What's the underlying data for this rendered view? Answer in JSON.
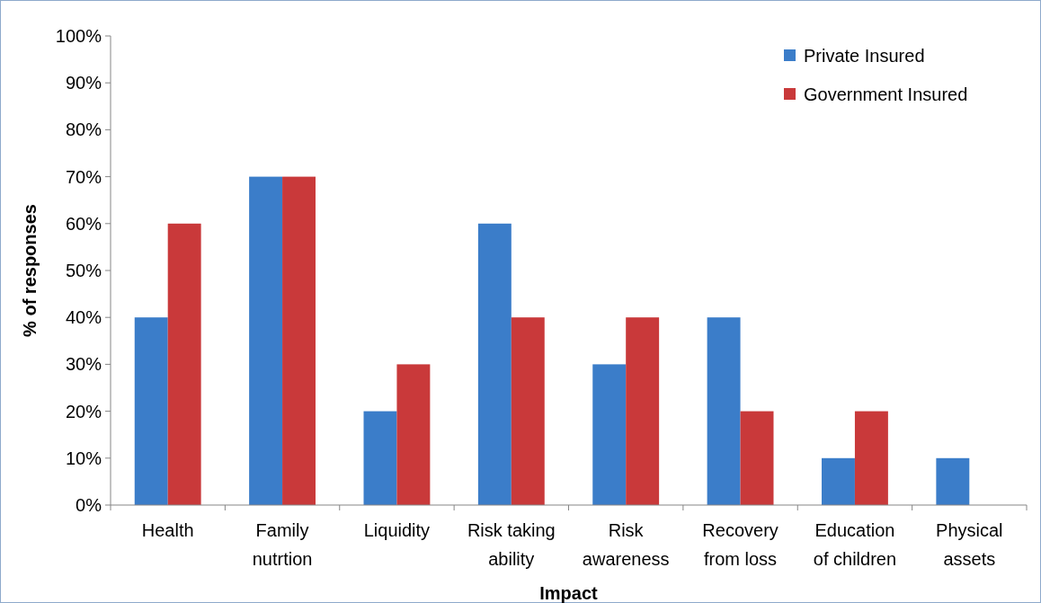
{
  "chart_data": {
    "type": "bar",
    "xlabel": "Impact",
    "ylabel": "% of responses",
    "categories": [
      "Health",
      "Family nutrtion",
      "Liquidity",
      "Risk taking ability",
      "Risk awareness",
      "Recovery from loss",
      "Education of children",
      "Physical assets"
    ],
    "series": [
      {
        "name": "Private Insured",
        "color": "#3b7dc9",
        "values": [
          40,
          70,
          20,
          60,
          30,
          40,
          10,
          10
        ]
      },
      {
        "name": "Government Insured",
        "color": "#c9393a",
        "values": [
          60,
          70,
          30,
          40,
          40,
          20,
          20,
          0
        ]
      }
    ],
    "ylim": [
      0,
      100
    ],
    "yticks": [
      {
        "value": 0,
        "label": "0%"
      },
      {
        "value": 10,
        "label": "10%"
      },
      {
        "value": 20,
        "label": "20%"
      },
      {
        "value": 30,
        "label": "30%"
      },
      {
        "value": 40,
        "label": "40%"
      },
      {
        "value": 50,
        "label": "50%"
      },
      {
        "value": 60,
        "label": "60%"
      },
      {
        "value": 70,
        "label": "70%"
      },
      {
        "value": 80,
        "label": "80%"
      },
      {
        "value": 90,
        "label": "90%"
      },
      {
        "value": 100,
        "label": "100%"
      }
    ],
    "grid": false,
    "legend": "top right"
  }
}
